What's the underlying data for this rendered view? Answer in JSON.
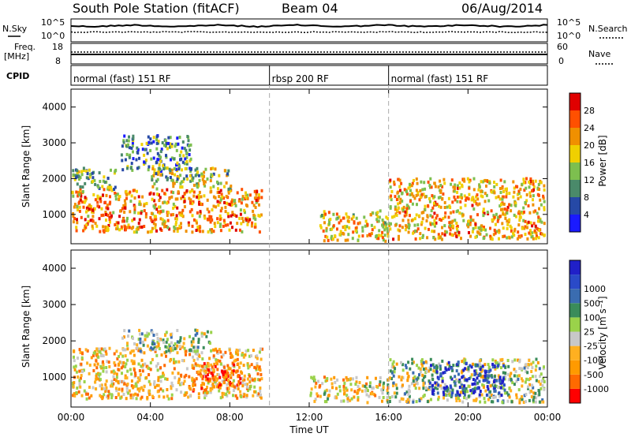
{
  "header": {
    "station": "South Pole Station (fitACF)",
    "beam": "Beam 04",
    "date": "06/Aug/2014"
  },
  "params": {
    "nsky_label": "N.Sky",
    "nsearch_label": "N.Search",
    "freq_label_1": "Freq.",
    "freq_label_2": "[MHz]",
    "nave_label": "Nave",
    "cpid_label": "CPID",
    "left_ticks_top": [
      "10^5",
      "10^0"
    ],
    "right_ticks_top": [
      "10^5",
      "10^0"
    ],
    "left_ticks_freq": [
      "18",
      "8"
    ],
    "right_ticks_nave": [
      "60",
      "0"
    ]
  },
  "cpid": {
    "segments": [
      {
        "label": "normal (fast) 151 RF",
        "start_hour": 0,
        "end_hour": 10
      },
      {
        "label": "rbsp 200 RF",
        "start_hour": 10,
        "end_hour": 16
      },
      {
        "label": "normal (fast) 151 RF",
        "start_hour": 16,
        "end_hour": 24
      }
    ]
  },
  "colors": {
    "power": [
      "#1a1aff",
      "#2649a6",
      "#4a8a6a",
      "#7dbf4f",
      "#f0d000",
      "#f09000",
      "#ff5000",
      "#e00000"
    ],
    "velocity": [
      "#ff0000",
      "#ff6a00",
      "#ff9a00",
      "#ffb020",
      "#c8c8c8",
      "#9ad24a",
      "#3a8c5a",
      "#3a6cb0",
      "#2a4ac8",
      "#2020c8"
    ]
  },
  "chart_data": [
    {
      "type": "heatmap",
      "panel": "power",
      "ylabel": "Slant Range [km]",
      "colorbar_label": "Power [dB]",
      "colorbar_ticks": [
        "4",
        "8",
        "12",
        "16",
        "20",
        "24",
        "28"
      ],
      "x_hours": [
        0,
        24
      ],
      "yticks": [
        "1000",
        "2000",
        "3000",
        "4000"
      ],
      "ylim": [
        180,
        4500
      ],
      "regions": [
        {
          "t0": 0.0,
          "t1": 9.6,
          "r0": 500,
          "r1": 1700,
          "level": 0.7
        },
        {
          "t0": 0.0,
          "t1": 2.2,
          "r0": 1700,
          "r1": 2300,
          "level": 0.4
        },
        {
          "t0": 2.5,
          "t1": 6.0,
          "r0": 2200,
          "r1": 3200,
          "level": 0.3
        },
        {
          "t0": 4.0,
          "t1": 8.0,
          "r0": 1700,
          "r1": 2300,
          "level": 0.45
        },
        {
          "t0": 12.5,
          "t1": 16.0,
          "r0": 250,
          "r1": 1100,
          "level": 0.6
        },
        {
          "t0": 16.0,
          "t1": 23.8,
          "r0": 300,
          "r1": 2000,
          "level": 0.65
        }
      ]
    },
    {
      "type": "heatmap",
      "panel": "velocity",
      "xlabel": "Time UT",
      "ylabel": "Slant Range [km]",
      "colorbar_label": "Velocity [m s⁻¹]",
      "colorbar_ticks": [
        "-1000",
        "-500",
        "-100",
        "-25",
        "25",
        "100",
        "500",
        "1000"
      ],
      "x_hours": [
        0,
        24
      ],
      "xticks": [
        "00:00",
        "04:00",
        "08:00",
        "12:00",
        "16:00",
        "20:00",
        "00:00"
      ],
      "yticks": [
        "1000",
        "2000",
        "3000",
        "4000"
      ],
      "ylim": [
        180,
        4500
      ],
      "regions": [
        {
          "t0": 0.0,
          "t1": 9.6,
          "r0": 400,
          "r1": 1800,
          "level": 0.35
        },
        {
          "t0": 2.5,
          "t1": 7.0,
          "r0": 1700,
          "r1": 2300,
          "level": 0.5
        },
        {
          "t0": 6.0,
          "t1": 8.5,
          "r0": 600,
          "r1": 1400,
          "level": 0.15
        },
        {
          "t0": 12.0,
          "t1": 16.0,
          "r0": 300,
          "r1": 1000,
          "level": 0.4
        },
        {
          "t0": 16.0,
          "t1": 23.8,
          "r0": 300,
          "r1": 1500,
          "level": 0.5
        },
        {
          "t0": 18.0,
          "t1": 21.8,
          "r0": 500,
          "r1": 1400,
          "level": 0.85
        }
      ]
    }
  ]
}
